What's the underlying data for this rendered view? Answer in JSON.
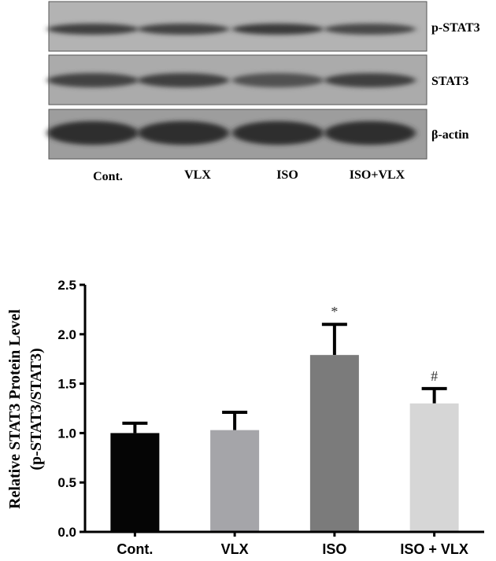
{
  "blot": {
    "rows": [
      {
        "label": "p-STAT3",
        "background": "#b3b3b3",
        "band_intensity": [
          0.75,
          0.7,
          0.8,
          0.65
        ]
      },
      {
        "label": "STAT3",
        "background": "#ababab",
        "band_intensity": [
          0.7,
          0.72,
          0.55,
          0.75
        ]
      },
      {
        "label": "β-actin",
        "background": "#9d9d9d",
        "band_intensity": [
          0.95,
          0.95,
          0.95,
          0.95
        ]
      }
    ],
    "lanes": [
      "Cont.",
      "VLX",
      "ISO",
      "ISO+VLX"
    ]
  },
  "chart_data": {
    "type": "bar",
    "categories": [
      "Cont.",
      "VLX",
      "ISO",
      "ISO + VLX"
    ],
    "values": [
      1.0,
      1.03,
      1.79,
      1.3
    ],
    "errors": [
      0.1,
      0.18,
      0.31,
      0.15
    ],
    "annotations": [
      "",
      "",
      "*",
      "#"
    ],
    "colors": [
      "#050505",
      "#a5a5a9",
      "#7b7b7b",
      "#d6d6d6"
    ],
    "ylabel": "Relative STAT3 Protein Level",
    "ylabel2": "(p-STAT3/STAT3)",
    "ylim": [
      0,
      2.5
    ],
    "yticks": [
      "0.0",
      "0.5",
      "1.0",
      "1.5",
      "2.0",
      "2.5"
    ],
    "grid": false
  }
}
